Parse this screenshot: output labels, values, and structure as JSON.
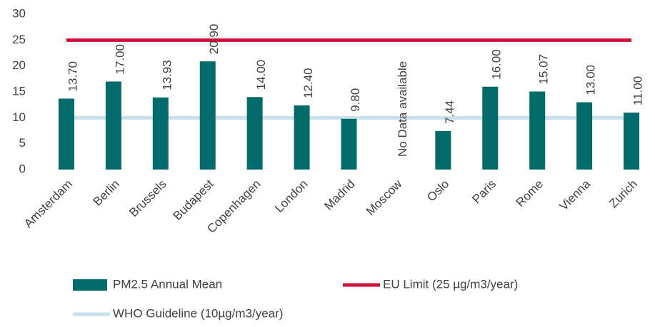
{
  "chart_data": {
    "type": "bar",
    "categories": [
      "Amsterdam",
      "Berlin",
      "Brussels",
      "Budapest",
      "Copenhagen",
      "London",
      "Madrid",
      "Moscow",
      "Oslo",
      "Paris",
      "Rome",
      "Vienna",
      "Zurich"
    ],
    "series": [
      {
        "name": "PM2.5 Annual Mean",
        "type": "bar",
        "color": "#046b6b",
        "values": [
          13.7,
          17,
          13.93,
          20.9,
          14,
          12.4,
          9.8,
          null,
          7.44,
          16,
          15.07,
          13,
          11
        ],
        "value_labels": [
          "13.70",
          "17.00",
          "13.93",
          "20.90",
          "14.00",
          "12.40",
          "9.80",
          "No Data available",
          "7.44",
          "16.00",
          "15.07",
          "13.00",
          "11.00"
        ]
      },
      {
        "name": "EU Limit (25 µg/m3/year)",
        "type": "line",
        "color": "#d0103a",
        "values": [
          25,
          25,
          25,
          25,
          25,
          25,
          25,
          25,
          25,
          25,
          25,
          25,
          25
        ]
      },
      {
        "name": "WHO Guideline (10µg/m3/year)",
        "type": "line",
        "color": "#c8e0ea",
        "values": [
          10,
          10,
          10,
          10,
          10,
          10,
          10,
          10,
          10,
          10,
          10,
          10,
          10
        ]
      }
    ],
    "ylim": [
      0,
      30
    ],
    "yticks": [
      0,
      5,
      10,
      15,
      20,
      25,
      30
    ],
    "grid": false,
    "legend": "bottom"
  }
}
